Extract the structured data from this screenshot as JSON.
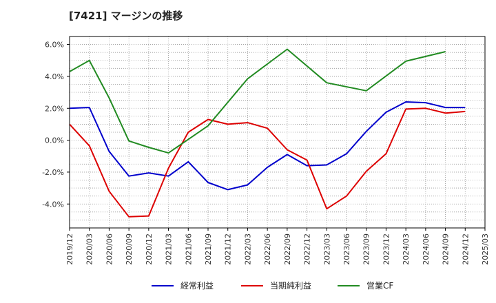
{
  "chart_data": {
    "type": "line",
    "title": "[7421]  マージンの推移",
    "x": [
      "2019/12",
      "2020/03",
      "2020/06",
      "2020/09",
      "2020/12",
      "2021/03",
      "2021/06",
      "2021/09",
      "2021/12",
      "2022/03",
      "2022/06",
      "2022/09",
      "2022/12",
      "2023/03",
      "2023/06",
      "2023/09",
      "2023/12",
      "2024/03",
      "2024/06",
      "2024/09",
      "2024/12",
      "2025/03"
    ],
    "y_ticks": [
      "6.0%",
      "4.0%",
      "2.0%",
      "0.0%",
      "-2.0%",
      "-4.0%"
    ],
    "y_tick_values": [
      6,
      4,
      2,
      0,
      -2,
      -4
    ],
    "ylim": [
      -5.5,
      6.5
    ],
    "grid": true,
    "legend_position": "bottom",
    "series": [
      {
        "name": "経常利益",
        "color": "#0000cc",
        "values": [
          2.0,
          2.05,
          -0.7,
          -2.25,
          -2.05,
          -2.25,
          -1.35,
          -2.65,
          -3.1,
          -2.8,
          -1.7,
          -0.9,
          -1.6,
          -1.55,
          -0.85,
          0.55,
          1.75,
          2.4,
          2.35,
          2.05,
          2.05,
          null
        ]
      },
      {
        "name": "当期純利益",
        "color": "#dd0000",
        "values": [
          1.0,
          -0.35,
          -3.2,
          -4.8,
          -4.75,
          -1.75,
          0.5,
          1.3,
          1.0,
          1.1,
          0.75,
          -0.6,
          -1.25,
          -4.3,
          -3.5,
          -1.95,
          -0.85,
          1.95,
          2.0,
          1.7,
          1.8,
          null
        ]
      },
      {
        "name": "営業CF",
        "color": "#228b22",
        "values": [
          4.3,
          5.0,
          2.65,
          -0.05,
          -0.45,
          -0.8,
          0.05,
          0.9,
          null,
          3.85,
          null,
          5.7,
          null,
          3.6,
          null,
          3.1,
          null,
          4.95,
          null,
          5.55,
          null,
          null
        ]
      }
    ]
  }
}
